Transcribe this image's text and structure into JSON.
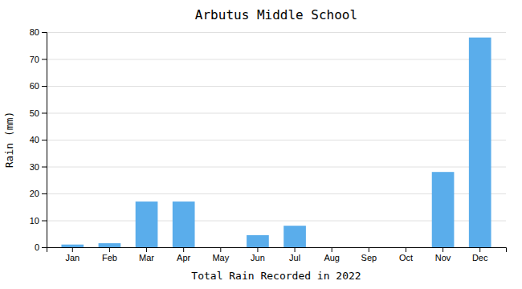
{
  "chart_data": {
    "type": "bar",
    "title": "Arbutus Middle School",
    "xlabel": "Total Rain Recorded in 2022",
    "ylabel": "Rain (mm)",
    "categories": [
      "Jan",
      "Feb",
      "Mar",
      "Apr",
      "May",
      "Jun",
      "Jul",
      "Aug",
      "Sep",
      "Oct",
      "Nov",
      "Dec"
    ],
    "values": [
      1,
      1.5,
      17,
      17,
      0,
      4.5,
      8,
      0,
      0,
      0,
      28,
      78
    ],
    "color": "#5AADEB",
    "ylim": [
      0,
      80
    ],
    "yticks": [
      0,
      10,
      20,
      30,
      40,
      50,
      60,
      70,
      80
    ],
    "grid": true
  }
}
